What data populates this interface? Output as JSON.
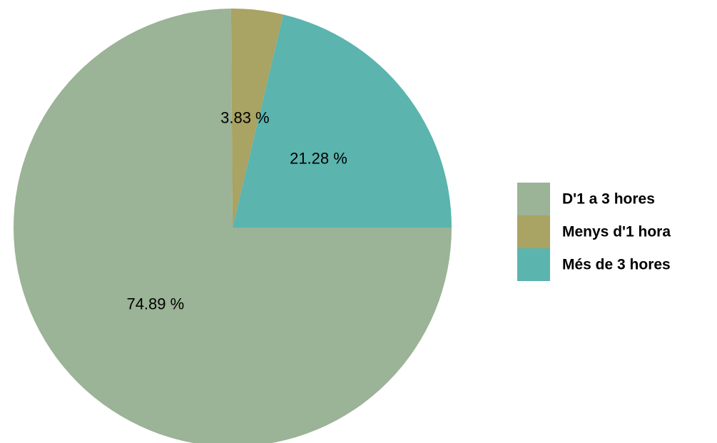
{
  "chart_data": {
    "type": "pie",
    "title": "",
    "start_angle_deg": 0,
    "direction": "clockwise",
    "legend_position": "right",
    "slices": [
      {
        "label": "D'1 a 3 hores",
        "value": 74.89,
        "display": "74.89 %",
        "color": "#9bb396"
      },
      {
        "label": "Menys d'1 hora",
        "value": 3.83,
        "display": "3.83 %",
        "color": "#a9a364"
      },
      {
        "label": "Més de 3 hores",
        "value": 21.28,
        "display": "21.28 %",
        "color": "#5bb4ae"
      }
    ]
  }
}
